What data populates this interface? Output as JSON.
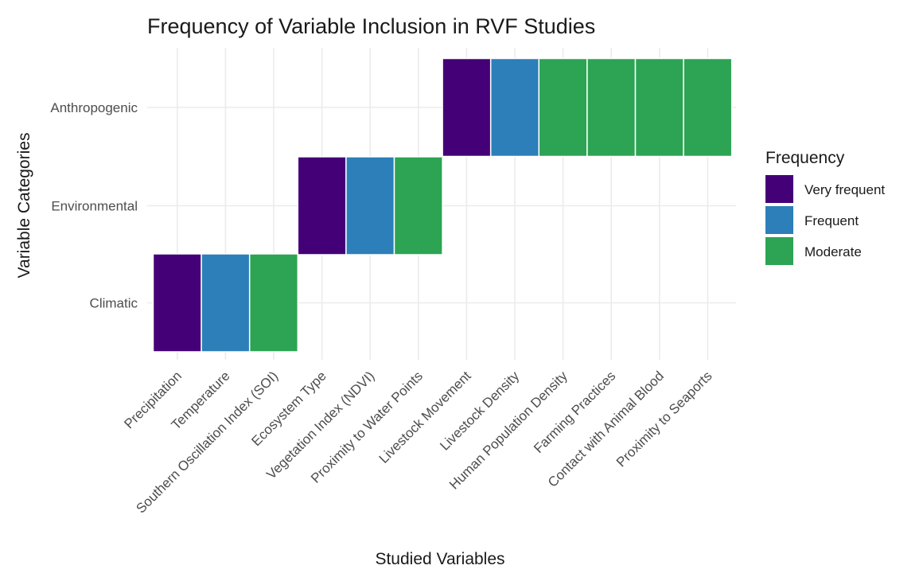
{
  "chart_data": {
    "type": "heatmap",
    "title": "Frequency of Variable Inclusion in RVF Studies",
    "xlabel": "Studied Variables",
    "ylabel": "Variable Categories",
    "x_categories": [
      "Precipitation",
      "Temperature",
      "Southern Oscillation Index (SOI)",
      "Ecosystem Type",
      "Vegetation Index (NDVI)",
      "Proximity to Water Points",
      "Livestock Movement",
      "Livestock Density",
      "Human Population Density",
      "Farming Practices",
      "Contact with Animal Blood",
      "Proximity to Seaports"
    ],
    "y_categories": [
      "Climatic",
      "Environmental",
      "Anthropogenic"
    ],
    "cells": [
      {
        "x": "Precipitation",
        "y": "Climatic",
        "frequency": "Very frequent"
      },
      {
        "x": "Temperature",
        "y": "Climatic",
        "frequency": "Frequent"
      },
      {
        "x": "Southern Oscillation Index (SOI)",
        "y": "Climatic",
        "frequency": "Moderate"
      },
      {
        "x": "Ecosystem Type",
        "y": "Environmental",
        "frequency": "Very frequent"
      },
      {
        "x": "Vegetation Index (NDVI)",
        "y": "Environmental",
        "frequency": "Frequent"
      },
      {
        "x": "Proximity to Water Points",
        "y": "Environmental",
        "frequency": "Moderate"
      },
      {
        "x": "Livestock Movement",
        "y": "Anthropogenic",
        "frequency": "Very frequent"
      },
      {
        "x": "Livestock Density",
        "y": "Anthropogenic",
        "frequency": "Frequent"
      },
      {
        "x": "Human Population Density",
        "y": "Anthropogenic",
        "frequency": "Moderate"
      },
      {
        "x": "Farming Practices",
        "y": "Anthropogenic",
        "frequency": "Moderate"
      },
      {
        "x": "Contact with Animal Blood",
        "y": "Anthropogenic",
        "frequency": "Moderate"
      },
      {
        "x": "Proximity to Seaports",
        "y": "Anthropogenic",
        "frequency": "Moderate"
      }
    ],
    "legend": {
      "title": "Frequency",
      "position": "right",
      "items": [
        {
          "label": "Very frequent",
          "color": "#440077"
        },
        {
          "label": "Frequent",
          "color": "#2c7fb8"
        },
        {
          "label": "Moderate",
          "color": "#2ca453"
        }
      ]
    },
    "grid": true
  }
}
